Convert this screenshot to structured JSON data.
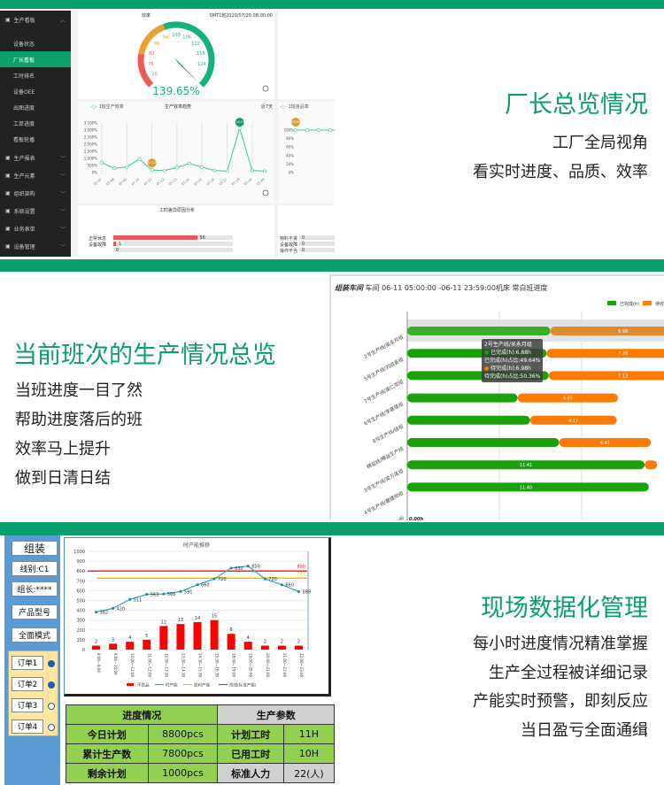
{
  "colors": {
    "brand": "#0b9e6e",
    "active": "#0aa26a",
    "done": "#19a20a",
    "todo": "#ff7a00",
    "defect": "#ff0000",
    "hourly": "#1fa8d8",
    "surplus": "#f5c000",
    "line": "#ff2020"
  },
  "section1": {
    "headline": "厂长总览情况",
    "lines": [
      "工厂全局视角",
      "看实时进度、品质、效率"
    ],
    "sidebar": [
      {
        "label": "生产看板",
        "icon": "monitor-icon",
        "expanded": true
      },
      {
        "label": "设备状态",
        "sub": true
      },
      {
        "label": "厂长看板",
        "sub": true,
        "active": true
      },
      {
        "label": "工时排名",
        "sub": true
      },
      {
        "label": "设备OEE",
        "sub": true
      },
      {
        "label": "出图进度",
        "sub": true
      },
      {
        "label": "工单进度",
        "sub": true
      },
      {
        "label": "看板轮播",
        "sub": true
      },
      {
        "label": "生产报表",
        "icon": "gear-icon"
      },
      {
        "label": "生产元素",
        "icon": "printer-icon"
      },
      {
        "label": "组织架构",
        "icon": "org-icon"
      },
      {
        "label": "系统设置",
        "icon": "settings-icon"
      },
      {
        "label": "业务表单",
        "icon": "form-icon"
      },
      {
        "label": "设备管理",
        "icon": "device-icon"
      }
    ],
    "gauge": {
      "title": "效率",
      "subtitle": "SMT1班2020/07/20 08:00:00",
      "value": "139.65%",
      "ticks": [
        "70",
        "76",
        "82",
        "88",
        "94",
        "100",
        "106",
        "112",
        "118",
        "124"
      ]
    },
    "trend": {
      "legend": "1班生产效率",
      "title": "生产效率趋势",
      "range": "近7天",
      "yticks": [
        "0%",
        "500%",
        "1,000%",
        "1,500%",
        "2,000%",
        "2,500%",
        "3,000%",
        "3,500%"
      ],
      "marker_low": "172.12%",
      "marker_high": "3118.57%"
    },
    "yield": {
      "legend": "1班良品率",
      "yticks": [
        "0%",
        "20%",
        "40%",
        "60%",
        "80%",
        "100%"
      ],
      "marker": "100%"
    },
    "reasons": {
      "title": "工时差异原因分析",
      "items": [
        {
          "label": "正常休息",
          "value": "56"
        },
        {
          "label": "设备故障",
          "value": "1"
        },
        {
          "label": "",
          "value": "0"
        }
      ]
    },
    "reasons2": {
      "items": [
        {
          "label": "物料不良",
          "value": "0"
        },
        {
          "label": "设备故障",
          "value": "0"
        },
        {
          "label": "操作不当",
          "value": "0"
        }
      ]
    }
  },
  "section2": {
    "headline": "当前班次的生产情况总览",
    "lines": [
      "当班进度一目了然",
      "帮助进度落后的班",
      "效率马上提升",
      "做到日清日结"
    ],
    "title_bold": "组装车间",
    "title_rest": "车间 06-11 05:00:00 -06-11 23:59:00机床 常白班进度",
    "tooltip": [
      "2号生产线/吴永月组",
      "已完成(h):6.88h",
      "已完成(h)占比:49.64%",
      "待完成(h):6.98h",
      "待完成(h)占比:50.36%"
    ],
    "last_row": {
      "label": "...组",
      "value": "0.00h"
    }
  },
  "section3": {
    "headline": "现场数据化管理",
    "lines": [
      "每小时进度情况精准掌握",
      "生产全过程被详细记录",
      "产能实时预警，即刻反应",
      "当日盈亏全面通缉"
    ],
    "buttons": [
      "组装",
      "线别:C1",
      "组长:****",
      "产品型号",
      "全面模式"
    ],
    "orders": [
      {
        "label": "订单1",
        "selected": true
      },
      {
        "label": "订单2",
        "selected": true
      },
      {
        "label": "订单3",
        "selected": false
      },
      {
        "label": "订单4",
        "selected": false
      }
    ],
    "table": {
      "h1": "进度情况",
      "h2": "生产参数",
      "rows": [
        [
          "今日计划",
          "8800pcs",
          "计划工时",
          "11H"
        ],
        [
          "累计生产数",
          "7800pcs",
          "已用工时",
          "10H"
        ],
        [
          "剩余计划",
          "1000pcs",
          "标准人力",
          "22(人)"
        ]
      ]
    }
  },
  "chart_data": [
    {
      "type": "gauge",
      "value": 139.65,
      "min": 70,
      "max": 130,
      "unit": "%"
    },
    {
      "type": "line",
      "title": "生产效率趋势",
      "series": [
        {
          "name": "1班生产效率",
          "values": [
            700,
            300,
            400,
            950,
            172.12,
            150,
            350,
            650,
            380,
            150,
            100,
            3118.57,
            150,
            100
          ]
        }
      ],
      "x": [
        "07-07",
        "07-08",
        "07-09",
        "07-10",
        "07-11",
        "07-12",
        "07-13",
        "07-14",
        "07-15",
        "07-16",
        "07-17",
        "07-18",
        "07-19",
        "07-20"
      ],
      "ylim": [
        0,
        3500
      ]
    },
    {
      "type": "bar",
      "orientation": "horizontal",
      "legend": [
        "已完成(h)",
        "待完成(h)"
      ],
      "categories": [
        "2号生产线/吴永月组",
        "5号生产线/刘成英组",
        "7号生产线/吴仁双组",
        "6号生产线/李喜莲组",
        "8号生产线/钱组",
        "精益线/精益生产线",
        "3号生产线/梁万莲组",
        "4号生产线/曹建刚组"
      ],
      "series": [
        {
          "name": "已完成(h)",
          "values": [
            6.88,
            6.7,
            6.8,
            5.3,
            5.9,
            7.3,
            11.41,
            11.4
          ]
        },
        {
          "name": "待完成(h)",
          "values": [
            6.98,
            7.35,
            7.13,
            4.83,
            4.17,
            4.41,
            0.6,
            0
          ]
        }
      ],
      "labels": [
        "6.98",
        "7.35",
        "7.13",
        "4.83",
        "4.17",
        "4.41",
        "11.41",
        "11.40"
      ]
    },
    {
      "type": "combo",
      "title": "时产能推移",
      "ylim": [
        0,
        1000
      ],
      "yticks": [
        0,
        100,
        200,
        300,
        400,
        500,
        600,
        700,
        800,
        900,
        1000
      ],
      "categories": [
        "8:00—9:00",
        "9:00—10:00",
        "10:00—11:00",
        "11:00—12:00",
        "12:30—13:30",
        "13:30—14:30",
        "14:30—15:30",
        "15:30—16:30",
        "18:00—19:00",
        "19:00—20:00",
        "20:00—21:00",
        "21:00—22:00",
        "22:00—23:00"
      ],
      "series": [
        {
          "name": "不良品",
          "type": "bar",
          "values": [
            2,
            3,
            4,
            5,
            12,
            13,
            14,
            15,
            8,
            4,
            2,
            2,
            2
          ]
        },
        {
          "name": "时产能",
          "type": "line",
          "values": [
            382,
            420,
            511,
            563,
            566,
            591,
            660,
            720,
            830,
            850,
            720,
            660,
            589
          ]
        },
        {
          "name": "盈利产能",
          "type": "hline",
          "value": 727
        },
        {
          "name": "残线(标准产能)",
          "type": "hline",
          "value": 800
        }
      ]
    }
  ]
}
